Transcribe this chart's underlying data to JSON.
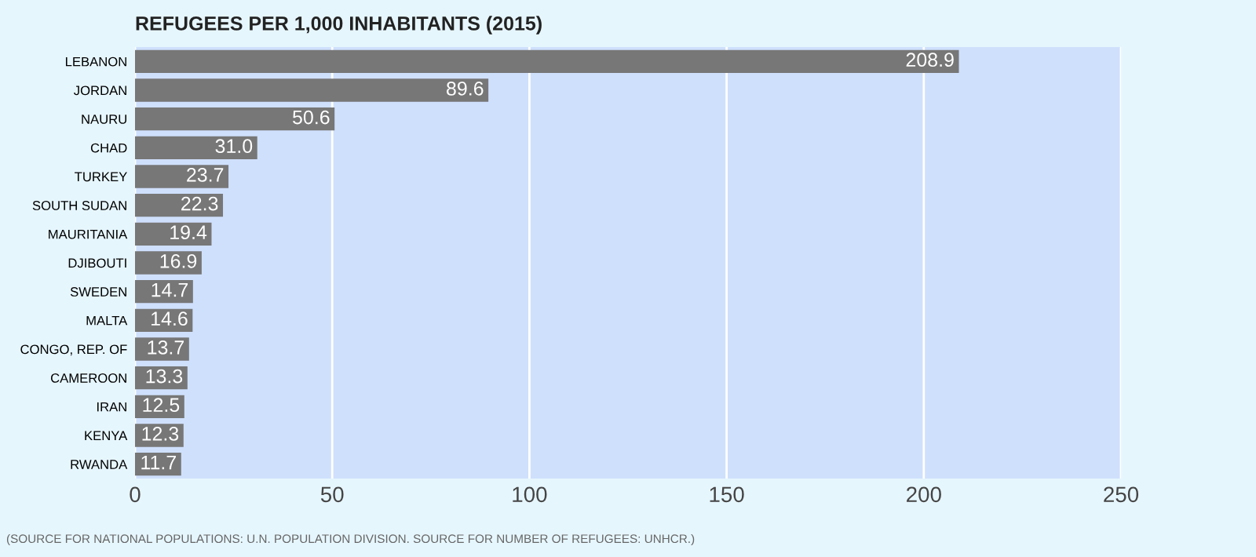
{
  "chart_data": {
    "type": "bar",
    "orientation": "horizontal",
    "title": "REFUGEES PER 1,000 INHABITANTS (2015)",
    "categories": [
      "LEBANON",
      "JORDAN",
      "NAURU",
      "CHAD",
      "TURKEY",
      "SOUTH SUDAN",
      "MAURITANIA",
      "DJIBOUTI",
      "SWEDEN",
      "MALTA",
      "CONGO, REP. OF",
      "CAMEROON",
      "IRAN",
      "KENYA",
      "RWANDA"
    ],
    "values": [
      208.9,
      89.6,
      50.6,
      31.0,
      23.7,
      22.3,
      19.4,
      16.9,
      14.7,
      14.6,
      13.7,
      13.3,
      12.5,
      12.3,
      11.7
    ],
    "value_labels": [
      "208.9",
      "89.6",
      "50.6",
      "31.0",
      "23.7",
      "22.3",
      "19.4",
      "16.9",
      "14.7",
      "14.6",
      "13.7",
      "13.3",
      "12.5",
      "12.3",
      "11.7"
    ],
    "color": "#777777",
    "xlim": [
      0,
      250
    ],
    "xticks": [
      0,
      50,
      100,
      150,
      200,
      250
    ],
    "grid": "x",
    "legend": false,
    "annotations": [
      "(SOURCE FOR NATIONAL POPULATIONS: U.N. POPULATION DIVISION. SOURCE FOR NUMBER OF REFUGEES: UNHCR.)"
    ]
  }
}
